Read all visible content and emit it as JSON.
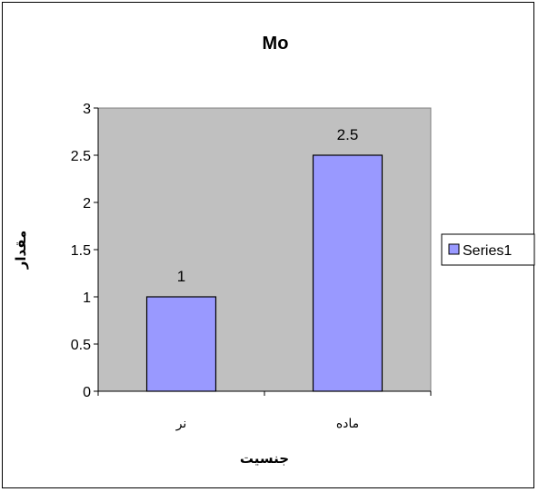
{
  "chart_data": {
    "type": "bar",
    "title": "Mo",
    "xlabel": "جنسیت",
    "ylabel": "مقدار",
    "categories": [
      "نر",
      "ماده"
    ],
    "series": [
      {
        "name": "Series1",
        "values": [
          1,
          2.5
        ],
        "color": "#9999ff"
      }
    ],
    "ylim": [
      0,
      3
    ],
    "yticks": [
      "0",
      "0.5",
      "1",
      "1.5",
      "2",
      "2.5",
      "3"
    ],
    "data_labels": [
      "1",
      "2.5"
    ],
    "plot_background": "#c0c0c0",
    "grid": false,
    "legend": "right"
  }
}
